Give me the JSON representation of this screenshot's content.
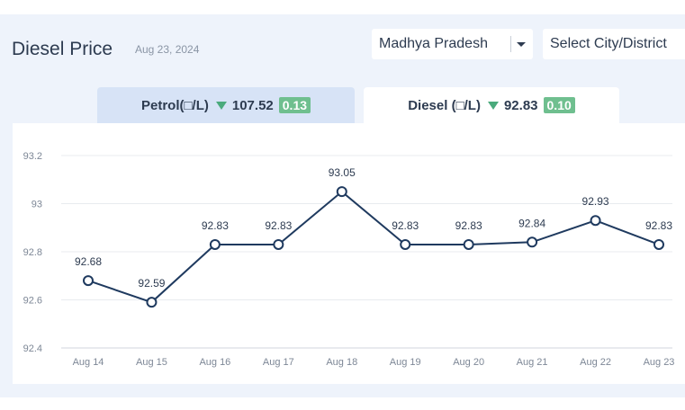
{
  "header": {
    "title": "Diesel Price",
    "date": "Aug 23, 2024"
  },
  "state_select": {
    "value": "Madhya Pradesh"
  },
  "city_select": {
    "placeholder": "Select City/District"
  },
  "tabs": [
    {
      "label": "Petrol(□/L)",
      "price": "107.52",
      "change": "0.13",
      "active": false
    },
    {
      "label": "Diesel (□/L)",
      "price": "92.83",
      "change": "0.10",
      "active": true
    }
  ],
  "colors": {
    "line": "#1f3a5f",
    "change_badge": "#6fbf8f",
    "down_arrow": "#4aaa7c"
  },
  "icons": {
    "trend": "triangle-down-icon",
    "dropdown": "chevron-down-icon"
  },
  "chart_data": {
    "type": "line",
    "categories": [
      "Aug 14",
      "Aug 15",
      "Aug 16",
      "Aug 17",
      "Aug 18",
      "Aug 19",
      "Aug 20",
      "Aug 21",
      "Aug 22",
      "Aug 23"
    ],
    "values": [
      92.68,
      92.59,
      92.83,
      92.83,
      93.05,
      92.83,
      92.83,
      92.84,
      92.93,
      92.83
    ],
    "data_labels": [
      "92.68",
      "92.59",
      "92.83",
      "92.83",
      "93.05",
      "92.83",
      "92.83",
      "92.84",
      "92.93",
      "92.83"
    ],
    "yticks": [
      92.4,
      92.6,
      92.8,
      93,
      93.2
    ],
    "ytick_labels": [
      "92.4",
      "92.6",
      "92.8",
      "93",
      "93.2"
    ],
    "ylim": [
      92.4,
      93.2
    ],
    "grid": true,
    "legend": "none"
  }
}
